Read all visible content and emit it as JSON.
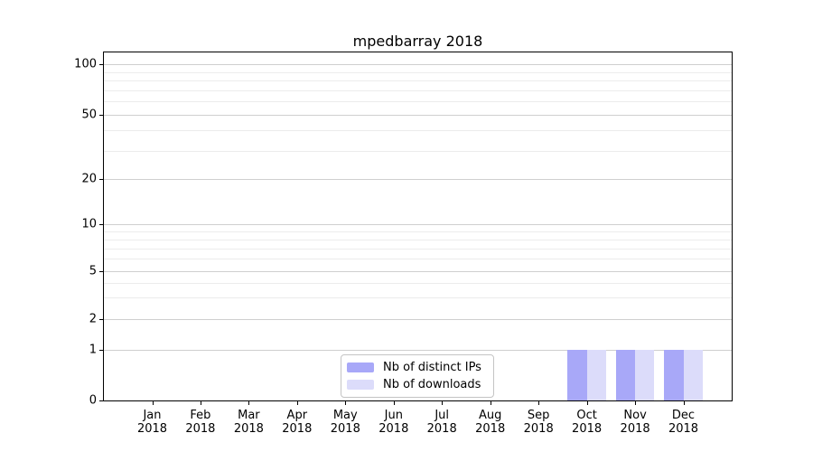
{
  "chart_data": {
    "type": "bar",
    "title": "mpedbarray 2018",
    "categories": [
      "Jan",
      "Feb",
      "Mar",
      "Apr",
      "May",
      "Jun",
      "Jul",
      "Aug",
      "Sep",
      "Oct",
      "Nov",
      "Dec"
    ],
    "year_label": "2018",
    "series": [
      {
        "name": "Nb of distinct IPs",
        "color": "#a8a8f8",
        "values": [
          0,
          0,
          0,
          0,
          0,
          0,
          0,
          0,
          0,
          1,
          1,
          1
        ]
      },
      {
        "name": "Nb of downloads",
        "color": "#dcdcfa",
        "values": [
          0,
          0,
          0,
          0,
          0,
          0,
          0,
          0,
          0,
          1,
          1,
          1
        ]
      }
    ],
    "y_ticks": [
      0,
      1,
      2,
      5,
      10,
      20,
      50,
      100
    ],
    "y_minor_ticks": [
      3,
      4,
      6,
      7,
      8,
      9,
      30,
      40,
      60,
      70,
      80,
      90
    ],
    "ylim": [
      0,
      110
    ],
    "scale": "symlog",
    "grid": "both",
    "legend_position": "lower center",
    "xlabel": "",
    "ylabel": ""
  }
}
